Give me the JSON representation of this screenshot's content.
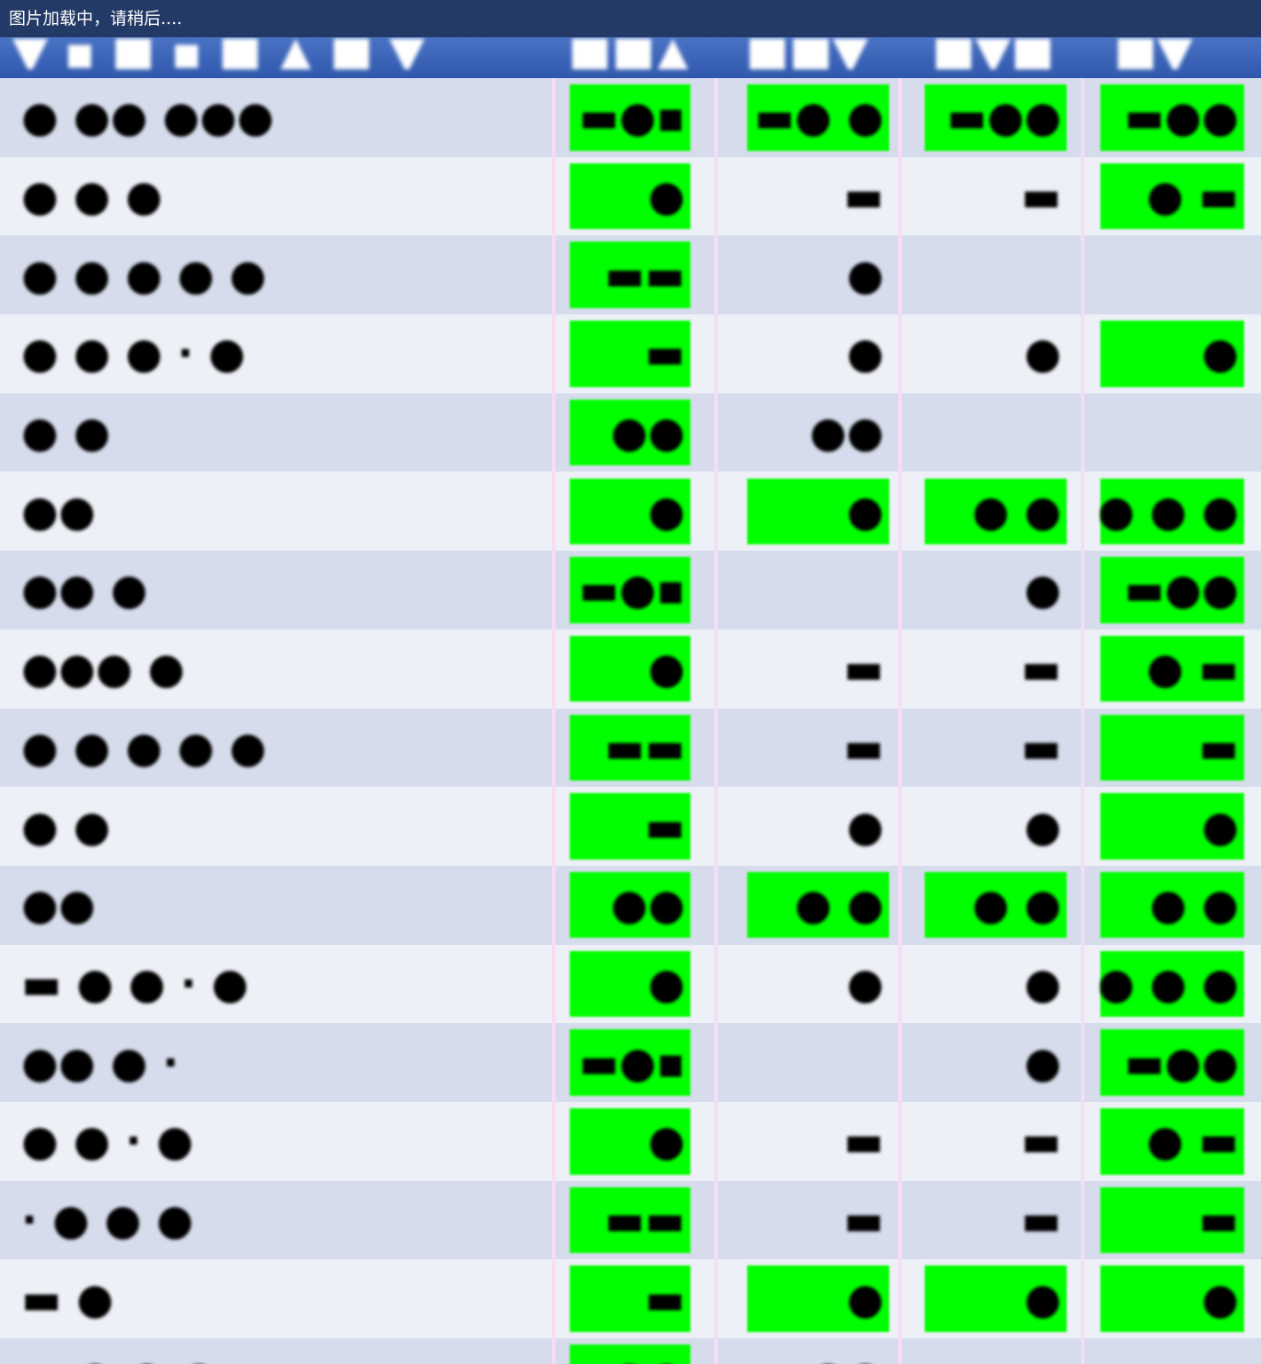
{
  "loading_text": "图片加载中，请稍后....",
  "header": {
    "name_label": "▼ ▪ ■ ▪ ■ ▲ ■ ▼",
    "col_labels": [
      "■■▲",
      "■■▼",
      "■▼■",
      "■▼"
    ]
  },
  "rows": [
    {
      "name": "● ●● ●●●",
      "cells": [
        {
          "value": "▬●▪",
          "highlight": true
        },
        {
          "value": "▬● ●",
          "highlight": true
        },
        {
          "value": "▬●●",
          "highlight": true
        },
        {
          "value": "▬●●",
          "highlight": true
        }
      ]
    },
    {
      "name": "● ●  ●",
      "cells": [
        {
          "value": "●",
          "highlight": true
        },
        {
          "value": "▬",
          "highlight": false
        },
        {
          "value": "▬",
          "highlight": false
        },
        {
          "value": "● ▬",
          "highlight": true
        }
      ]
    },
    {
      "name": " ●  ● ● ● ●",
      "cells": [
        {
          "value": "▬▬",
          "highlight": true
        },
        {
          "value": "●",
          "highlight": false
        },
        {
          "value": "",
          "highlight": false
        },
        {
          "value": "",
          "highlight": false
        }
      ]
    },
    {
      "name": "● ● ●  · ●",
      "cells": [
        {
          "value": "▬",
          "highlight": true
        },
        {
          "value": "●",
          "highlight": false
        },
        {
          "value": "●",
          "highlight": false
        },
        {
          "value": "●",
          "highlight": true
        }
      ]
    },
    {
      "name": "●  ●",
      "cells": [
        {
          "value": "●●",
          "highlight": true
        },
        {
          "value": "●●",
          "highlight": false
        },
        {
          "value": "",
          "highlight": false
        },
        {
          "value": "",
          "highlight": false
        }
      ]
    },
    {
      "name": " ●●",
      "cells": [
        {
          "value": "●",
          "highlight": true
        },
        {
          "value": "●",
          "highlight": true
        },
        {
          "value": "● ●",
          "highlight": true
        },
        {
          "value": "● ● ●",
          "highlight": true
        }
      ]
    },
    {
      "name": "●●  ●",
      "cells": [
        {
          "value": "▬●▪",
          "highlight": true
        },
        {
          "value": "",
          "highlight": false
        },
        {
          "value": "●",
          "highlight": false
        },
        {
          "value": "▬●●",
          "highlight": true
        }
      ]
    },
    {
      "name": "●●● ●",
      "cells": [
        {
          "value": "●",
          "highlight": true
        },
        {
          "value": "▬",
          "highlight": false
        },
        {
          "value": "▬",
          "highlight": false
        },
        {
          "value": "● ▬",
          "highlight": true
        }
      ]
    },
    {
      "name": "● ● ● ● ●",
      "cells": [
        {
          "value": "▬▬",
          "highlight": true
        },
        {
          "value": "▬",
          "highlight": false
        },
        {
          "value": "▬",
          "highlight": false
        },
        {
          "value": "▬",
          "highlight": true
        }
      ]
    },
    {
      "name": " ● ●",
      "cells": [
        {
          "value": "▬",
          "highlight": true
        },
        {
          "value": "●",
          "highlight": false
        },
        {
          "value": "●",
          "highlight": false
        },
        {
          "value": "●",
          "highlight": true
        }
      ]
    },
    {
      "name": "●●",
      "cells": [
        {
          "value": "●●",
          "highlight": true
        },
        {
          "value": "● ●",
          "highlight": true
        },
        {
          "value": "● ●",
          "highlight": true
        },
        {
          "value": "● ●",
          "highlight": true
        }
      ]
    },
    {
      "name": "▬ ● ● · ●",
      "cells": [
        {
          "value": "●",
          "highlight": true
        },
        {
          "value": "●",
          "highlight": false
        },
        {
          "value": "●",
          "highlight": false
        },
        {
          "value": "● ● ●",
          "highlight": true
        }
      ]
    },
    {
      "name": "●● ● ·",
      "cells": [
        {
          "value": "▬●▪",
          "highlight": true
        },
        {
          "value": "",
          "highlight": false
        },
        {
          "value": "●",
          "highlight": false
        },
        {
          "value": "▬●●",
          "highlight": true
        }
      ]
    },
    {
      "name": " ● ● · ●",
      "cells": [
        {
          "value": "●",
          "highlight": true
        },
        {
          "value": "▬",
          "highlight": false
        },
        {
          "value": "▬",
          "highlight": false
        },
        {
          "value": "● ▬",
          "highlight": true
        }
      ]
    },
    {
      "name": "· ● ●  ●",
      "cells": [
        {
          "value": "▬▬",
          "highlight": true
        },
        {
          "value": "▬",
          "highlight": false
        },
        {
          "value": "▬",
          "highlight": false
        },
        {
          "value": "▬",
          "highlight": true
        }
      ]
    },
    {
      "name": "▬ ●",
      "cells": [
        {
          "value": "▬",
          "highlight": true
        },
        {
          "value": "●",
          "highlight": true
        },
        {
          "value": "●",
          "highlight": true
        },
        {
          "value": "●",
          "highlight": true
        }
      ]
    },
    {
      "name": "▬ ● ● ●",
      "cells": [
        {
          "value": "●●",
          "highlight": true
        },
        {
          "value": "●●",
          "highlight": false
        },
        {
          "value": "",
          "highlight": false
        },
        {
          "value": "",
          "highlight": false
        }
      ]
    }
  ],
  "colors": {
    "highlight": "#00ff00",
    "header_bg": "#3a62b8",
    "row_odd": "#d6dcec",
    "row_even": "#eef0f7",
    "separator": "#f7dcf7"
  }
}
